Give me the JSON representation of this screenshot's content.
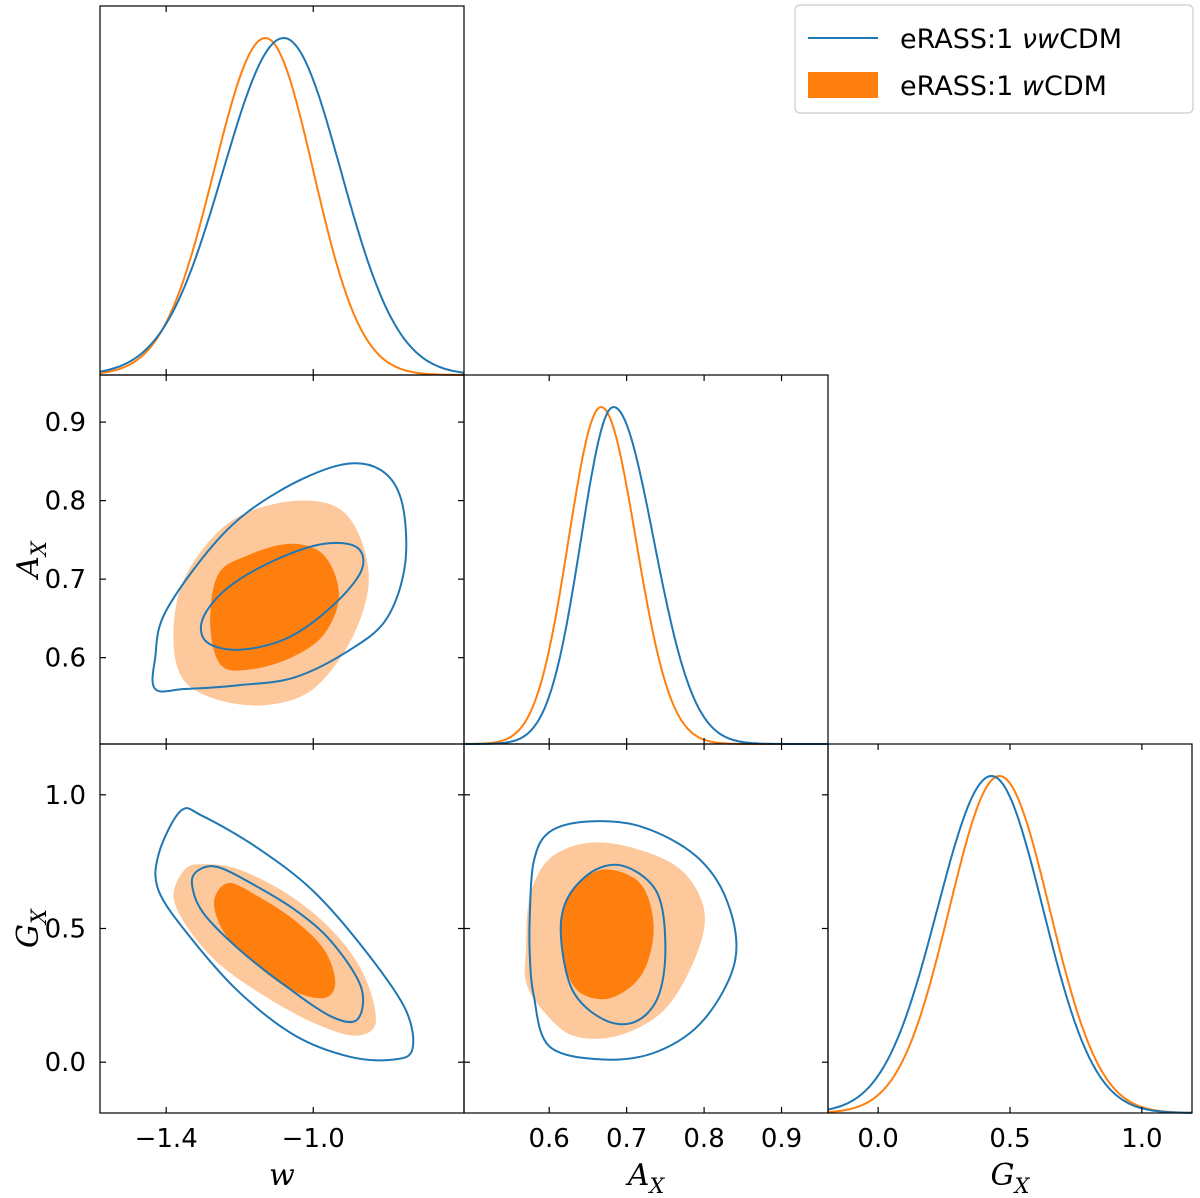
{
  "chart_data": {
    "type": "corner",
    "parameters": [
      {
        "id": "w",
        "label": "w",
        "range": [
          -1.58,
          -0.59
        ],
        "ticks": [
          -1.4,
          -1.0
        ],
        "tick_labels": [
          "−1.4",
          "−1.0"
        ]
      },
      {
        "id": "A_X",
        "label": "A",
        "subscript": "X",
        "range": [
          0.49,
          0.96
        ],
        "ticks": [
          0.6,
          0.7,
          0.8,
          0.9
        ],
        "tick_labels": [
          "0.6",
          "0.7",
          "0.8",
          "0.9"
        ]
      },
      {
        "id": "G_X",
        "label": "G",
        "subscript": "X",
        "range": [
          -0.19,
          1.19
        ],
        "ticks": [
          0.0,
          0.5,
          1.0
        ],
        "tick_labels": [
          "0.0",
          "0.5",
          "1.0"
        ]
      }
    ],
    "legend": {
      "position": "top-right",
      "entries": [
        {
          "label_prefix": "eRASS:1 ",
          "label_italic": "νw",
          "label_suffix": "CDM",
          "style": "line",
          "series": "nuwcdm"
        },
        {
          "label_prefix": "eRASS:1 ",
          "label_italic": "w",
          "label_suffix": "CDM",
          "style": "filled",
          "series": "wcdm"
        }
      ]
    },
    "series": {
      "nuwcdm": {
        "color": "#1f77b4",
        "marginals": {
          "w": {
            "peak": -1.08,
            "sigma_left": 0.165,
            "sigma_right": 0.155
          },
          "A_X": {
            "peak": 0.683,
            "sigma_left": 0.042,
            "sigma_right": 0.052
          },
          "G_X": {
            "peak": 0.43,
            "sigma_left": 0.205,
            "sigma_right": 0.195
          }
        },
        "contours": {
          "A_X_vs_w": {
            "inner": [
              [
                -1.3,
                0.65
              ],
              [
                -1.23,
                0.69
              ],
              [
                -1.1,
                0.725
              ],
              [
                -0.97,
                0.745
              ],
              [
                -0.88,
                0.74
              ],
              [
                -0.87,
                0.71
              ],
              [
                -0.95,
                0.665
              ],
              [
                -1.07,
                0.625
              ],
              [
                -1.2,
                0.61
              ],
              [
                -1.29,
                0.62
              ]
            ],
            "outer": [
              [
                -1.43,
                0.6
              ],
              [
                -1.4,
                0.66
              ],
              [
                -1.25,
                0.755
              ],
              [
                -1.1,
                0.81
              ],
              [
                -0.93,
                0.845
              ],
              [
                -0.82,
                0.84
              ],
              [
                -0.76,
                0.8
              ],
              [
                -0.75,
                0.72
              ],
              [
                -0.8,
                0.65
              ],
              [
                -0.9,
                0.61
              ],
              [
                -1.05,
                0.575
              ],
              [
                -1.2,
                0.565
              ],
              [
                -1.35,
                0.56
              ],
              [
                -1.43,
                0.56
              ]
            ]
          },
          "G_X_vs_w": {
            "inner": [
              [
                -1.31,
                0.72
              ],
              [
                -1.26,
                0.73
              ],
              [
                -1.17,
                0.67
              ],
              [
                -1.05,
                0.57
              ],
              [
                -0.95,
                0.45
              ],
              [
                -0.87,
                0.28
              ],
              [
                -0.88,
                0.16
              ],
              [
                -0.95,
                0.17
              ],
              [
                -1.07,
                0.28
              ],
              [
                -1.2,
                0.42
              ],
              [
                -1.3,
                0.56
              ],
              [
                -1.33,
                0.67
              ]
            ],
            "outer": [
              [
                -1.42,
                0.78
              ],
              [
                -1.36,
                0.94
              ],
              [
                -1.3,
                0.92
              ],
              [
                -1.15,
                0.8
              ],
              [
                -1.0,
                0.64
              ],
              [
                -0.86,
                0.42
              ],
              [
                -0.75,
                0.2
              ],
              [
                -0.73,
                0.05
              ],
              [
                -0.78,
                0.01
              ],
              [
                -0.9,
                0.02
              ],
              [
                -1.05,
                0.1
              ],
              [
                -1.2,
                0.26
              ],
              [
                -1.33,
                0.46
              ],
              [
                -1.42,
                0.64
              ]
            ]
          },
          "G_X_vs_A_X": {
            "inner": [
              [
                0.615,
                0.48
              ],
              [
                0.625,
                0.62
              ],
              [
                0.66,
                0.72
              ],
              [
                0.7,
                0.73
              ],
              [
                0.74,
                0.63
              ],
              [
                0.75,
                0.42
              ],
              [
                0.74,
                0.24
              ],
              [
                0.71,
                0.15
              ],
              [
                0.67,
                0.16
              ],
              [
                0.63,
                0.27
              ]
            ],
            "outer": [
              [
                0.575,
                0.55
              ],
              [
                0.58,
                0.75
              ],
              [
                0.6,
                0.86
              ],
              [
                0.65,
                0.9
              ],
              [
                0.72,
                0.88
              ],
              [
                0.79,
                0.77
              ],
              [
                0.83,
                0.6
              ],
              [
                0.84,
                0.38
              ],
              [
                0.8,
                0.16
              ],
              [
                0.74,
                0.04
              ],
              [
                0.67,
                0.01
              ],
              [
                0.6,
                0.06
              ],
              [
                0.58,
                0.25
              ],
              [
                0.575,
                0.4
              ]
            ]
          }
        }
      },
      "wcdm": {
        "color": "#ff7f0e",
        "light_color": "#fdc89b",
        "marginals": {
          "w": {
            "peak": -1.13,
            "sigma_left": 0.14,
            "sigma_right": 0.13
          },
          "A_X": {
            "peak": 0.667,
            "sigma_left": 0.042,
            "sigma_right": 0.045
          },
          "G_X": {
            "peak": 0.46,
            "sigma_left": 0.19,
            "sigma_right": 0.19
          }
        },
        "contours": {
          "A_X_vs_w": {
            "inner": [
              [
                -1.28,
                0.64
              ],
              [
                -1.26,
                0.705
              ],
              [
                -1.18,
                0.73
              ],
              [
                -1.06,
                0.745
              ],
              [
                -0.97,
                0.73
              ],
              [
                -0.93,
                0.68
              ],
              [
                -0.97,
                0.63
              ],
              [
                -1.06,
                0.6
              ],
              [
                -1.17,
                0.585
              ],
              [
                -1.25,
                0.59
              ]
            ],
            "outer": [
              [
                -1.38,
                0.62
              ],
              [
                -1.36,
                0.69
              ],
              [
                -1.28,
                0.75
              ],
              [
                -1.18,
                0.785
              ],
              [
                -1.04,
                0.8
              ],
              [
                -0.93,
                0.79
              ],
              [
                -0.87,
                0.75
              ],
              [
                -0.85,
                0.69
              ],
              [
                -0.9,
                0.62
              ],
              [
                -1.0,
                0.56
              ],
              [
                -1.12,
                0.54
              ],
              [
                -1.25,
                0.545
              ],
              [
                -1.35,
                0.57
              ]
            ]
          },
          "G_X_vs_w": {
            "inner": [
              [
                -1.27,
                0.6
              ],
              [
                -1.23,
                0.67
              ],
              [
                -1.15,
                0.62
              ],
              [
                -1.05,
                0.53
              ],
              [
                -0.97,
                0.42
              ],
              [
                -0.94,
                0.3
              ],
              [
                -0.97,
                0.24
              ],
              [
                -1.06,
                0.27
              ],
              [
                -1.16,
                0.37
              ],
              [
                -1.24,
                0.48
              ]
            ],
            "outer": [
              [
                -1.38,
                0.62
              ],
              [
                -1.35,
                0.72
              ],
              [
                -1.3,
                0.74
              ],
              [
                -1.2,
                0.72
              ],
              [
                -1.06,
                0.62
              ],
              [
                -0.94,
                0.48
              ],
              [
                -0.86,
                0.32
              ],
              [
                -0.83,
                0.15
              ],
              [
                -0.88,
                0.1
              ],
              [
                -0.97,
                0.13
              ],
              [
                -1.1,
                0.22
              ],
              [
                -1.25,
                0.36
              ],
              [
                -1.34,
                0.5
              ]
            ]
          },
          "G_X_vs_A_X": {
            "inner": [
              [
                0.615,
                0.48
              ],
              [
                0.62,
                0.6
              ],
              [
                0.645,
                0.69
              ],
              [
                0.68,
                0.72
              ],
              [
                0.72,
                0.66
              ],
              [
                0.735,
                0.5
              ],
              [
                0.72,
                0.33
              ],
              [
                0.68,
                0.24
              ],
              [
                0.64,
                0.26
              ],
              [
                0.62,
                0.36
              ]
            ],
            "outer": [
              [
                0.57,
                0.42
              ],
              [
                0.575,
                0.62
              ],
              [
                0.6,
                0.76
              ],
              [
                0.65,
                0.82
              ],
              [
                0.71,
                0.8
              ],
              [
                0.77,
                0.72
              ],
              [
                0.8,
                0.57
              ],
              [
                0.79,
                0.4
              ],
              [
                0.75,
                0.2
              ],
              [
                0.69,
                0.1
              ],
              [
                0.63,
                0.1
              ],
              [
                0.59,
                0.2
              ],
              [
                0.57,
                0.3
              ]
            ]
          }
        }
      }
    }
  }
}
